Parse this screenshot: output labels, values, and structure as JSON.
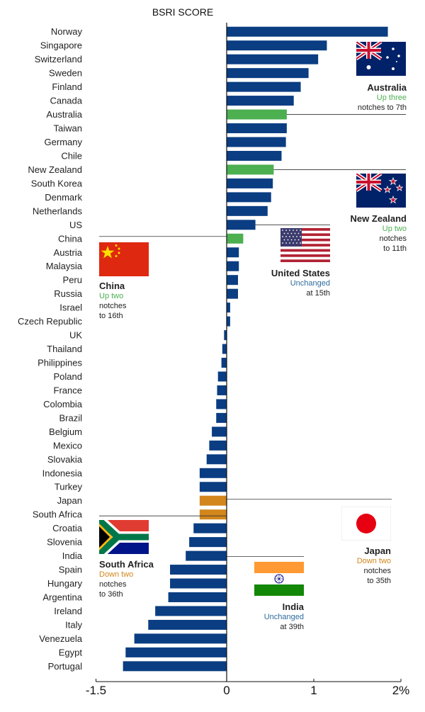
{
  "chart_data": {
    "type": "bar",
    "orientation": "horizontal",
    "title": "BSRI SCORE",
    "xlim": [
      -1.5,
      2
    ],
    "ticks": [
      {
        "value": -1.5,
        "label": "-1.5"
      },
      {
        "value": 0,
        "label": "0"
      },
      {
        "value": 1,
        "label": "1"
      },
      {
        "value": 2,
        "label": "2%"
      }
    ],
    "grid": false,
    "colors": {
      "default": "#0a3d82",
      "up": "#4caf50",
      "down": "#d2861c",
      "unchanged": "#2d6b9c"
    },
    "categories": [
      "Norway",
      "Singapore",
      "Switzerland",
      "Sweden",
      "Finland",
      "Canada",
      "Australia",
      "Taiwan",
      "Germany",
      "Chile",
      "New Zealand",
      "South Korea",
      "Denmark",
      "Netherlands",
      "US",
      "China",
      "Austria",
      "Malaysia",
      "Peru",
      "Russia",
      "Israel",
      "Czech Republic",
      "UK",
      "Thailand",
      "Philippines",
      "Poland",
      "France",
      "Colombia",
      "Brazil",
      "Belgium",
      "Mexico",
      "Slovakia",
      "Indonesia",
      "Turkey",
      "Japan",
      "South Africa",
      "Croatia",
      "Slovenia",
      "India",
      "Spain",
      "Hungary",
      "Argentina",
      "Ireland",
      "Italy",
      "Venezuela",
      "Egypt",
      "Portugal"
    ],
    "values": [
      1.85,
      1.15,
      1.05,
      0.94,
      0.85,
      0.77,
      0.69,
      0.69,
      0.68,
      0.63,
      0.54,
      0.53,
      0.51,
      0.47,
      0.33,
      0.19,
      0.14,
      0.14,
      0.13,
      0.13,
      0.04,
      0.04,
      -0.03,
      -0.05,
      -0.06,
      -0.1,
      -0.11,
      -0.12,
      -0.12,
      -0.17,
      -0.2,
      -0.23,
      -0.31,
      -0.31,
      -0.31,
      -0.31,
      -0.38,
      -0.43,
      -0.47,
      -0.65,
      -0.65,
      -0.67,
      -0.82,
      -0.9,
      -1.06,
      -1.16,
      -1.19
    ],
    "highlight": {
      "Australia": "up",
      "New Zealand": "up",
      "China": "up",
      "Japan": "down",
      "South Africa": "down"
    }
  },
  "annotations": {
    "australia": {
      "name": "Australia",
      "status": "Up three",
      "detail1": "notches to 7th",
      "detail2": ""
    },
    "new_zealand": {
      "name": "New Zealand",
      "status": "Up two",
      "detail1": "notches",
      "detail2": "to 11th"
    },
    "united_states": {
      "name": "United States",
      "status": "Unchanged",
      "detail1": "at 15th",
      "detail2": ""
    },
    "china": {
      "name": "China",
      "status": "Up two",
      "detail1": "notches",
      "detail2": "to 16th"
    },
    "japan": {
      "name": "Japan",
      "status": "Down two",
      "detail1": "notches",
      "detail2": "to 35th"
    },
    "south_africa": {
      "name": "South Africa",
      "status": "Down two",
      "detail1": "notches",
      "detail2": "to 36th"
    },
    "india": {
      "name": "India",
      "status": "Unchanged",
      "detail1": "at 39th",
      "detail2": ""
    }
  },
  "flags": {
    "australia": "australia-flag-icon",
    "new_zealand": "new-zealand-flag-icon",
    "united_states": "us-flag-icon",
    "china": "china-flag-icon",
    "japan": "japan-flag-icon",
    "south_africa": "south-africa-flag-icon",
    "india": "india-flag-icon"
  }
}
